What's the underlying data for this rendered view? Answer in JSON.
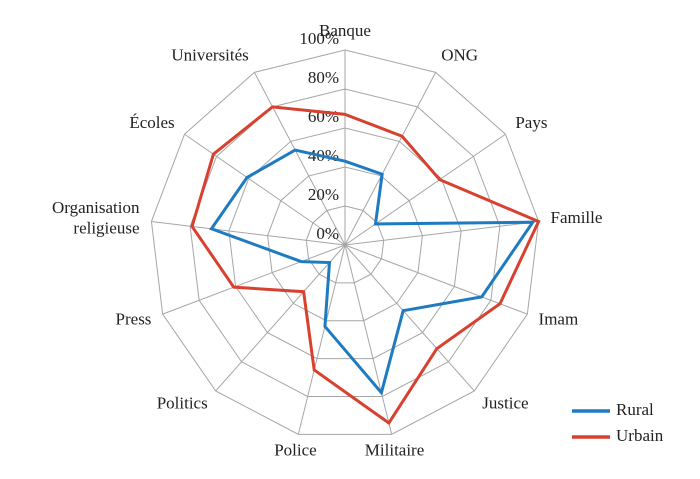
{
  "chart_data": {
    "type": "radar",
    "categories": [
      "Banque",
      "ONG",
      "Pays",
      "Famille",
      "Imam",
      "Justice",
      "Militaire",
      "Police",
      "Politics",
      "Press",
      "Organisation religieuse",
      "Écoles",
      "Universités"
    ],
    "series": [
      {
        "name": "Rural",
        "color": "#1f7bc0",
        "values": [
          43,
          41,
          19,
          97,
          75,
          45,
          78,
          43,
          12,
          24,
          69,
          61,
          55
        ]
      },
      {
        "name": "Urbain",
        "color": "#d8412f",
        "values": [
          67,
          63,
          59,
          100,
          85,
          71,
          94,
          66,
          32,
          61,
          79,
          82,
          80
        ]
      }
    ],
    "ylim": [
      0,
      100
    ],
    "yticks": [
      {
        "value": 0,
        "label": "0%"
      },
      {
        "value": 20,
        "label": "20%"
      },
      {
        "value": 40,
        "label": "40%"
      },
      {
        "value": 60,
        "label": "60%"
      },
      {
        "value": 80,
        "label": "80%"
      },
      {
        "value": 100,
        "label": "100%"
      }
    ],
    "grid": true,
    "legend": "lower right"
  }
}
